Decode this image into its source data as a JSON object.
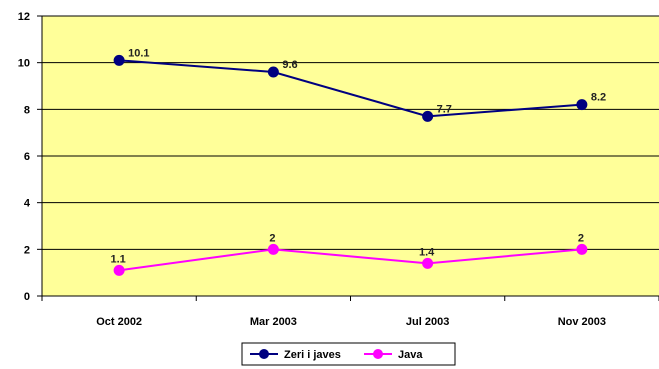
{
  "chart_data": {
    "type": "line",
    "title": "",
    "xlabel": "",
    "ylabel": "",
    "categories": [
      "Oct 2002",
      "Mar 2003",
      "Jul 2003",
      "Nov 2003"
    ],
    "ylim": [
      0,
      12
    ],
    "yticks": [
      "0",
      "2",
      "4",
      "6",
      "8",
      "10",
      "12"
    ],
    "grid": true,
    "legend_position": "bottom",
    "plot_background": "#FFFF99",
    "series": [
      {
        "name": "Zeri i javes",
        "values": [
          10.1,
          9.6,
          7.7,
          8.2
        ],
        "labels": [
          "10.1",
          "9.6",
          "7.7",
          "8.2"
        ],
        "color": "#000080"
      },
      {
        "name": "Java",
        "values": [
          1.1,
          2,
          1.4,
          2
        ],
        "labels": [
          "1.1",
          "2",
          "1.4",
          "2"
        ],
        "color": "#FF00FF"
      }
    ]
  }
}
